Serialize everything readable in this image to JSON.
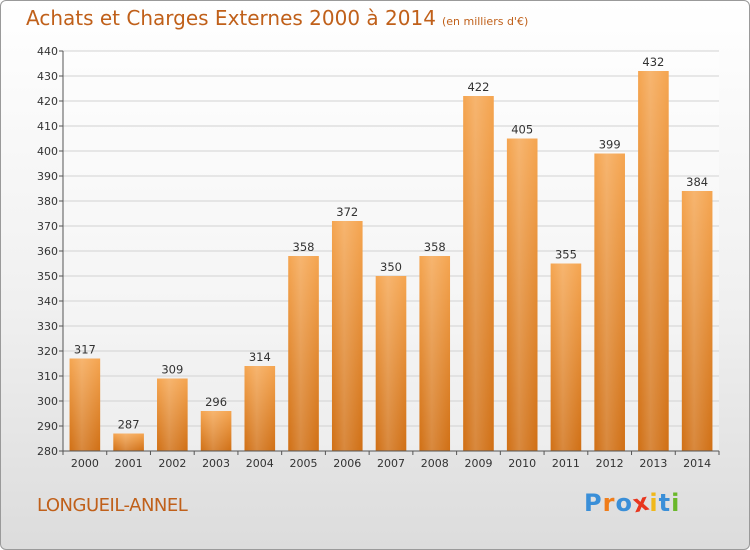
{
  "chart_data": {
    "type": "bar",
    "title": "Achats et Charges Externes 2000 à 2014",
    "subtitle": "(en milliers d'€)",
    "categories": [
      "2000",
      "2001",
      "2002",
      "2003",
      "2004",
      "2005",
      "2006",
      "2007",
      "2008",
      "2009",
      "2010",
      "2011",
      "2012",
      "2013",
      "2014"
    ],
    "values": [
      317,
      287,
      309,
      296,
      314,
      358,
      372,
      350,
      358,
      422,
      405,
      355,
      399,
      432,
      384
    ],
    "ylim": [
      280,
      440
    ],
    "yticks": [
      280,
      290,
      300,
      310,
      320,
      330,
      340,
      350,
      360,
      370,
      380,
      390,
      400,
      410,
      420,
      430,
      440
    ],
    "grid": true,
    "bar_color": "#f0922f",
    "bar_color_dark": "#d06f14"
  },
  "footer": {
    "place": "LONGUEIL-ANNEL",
    "logo_letters": [
      "P",
      "r",
      "o",
      "x",
      "i",
      "t",
      "i"
    ],
    "logo_colors": [
      "#3a8fd8",
      "#f07d1a",
      "#3a8fd8",
      "#e8361e",
      "#f0b81a",
      "#3a8fd8",
      "#6ab82a"
    ]
  }
}
